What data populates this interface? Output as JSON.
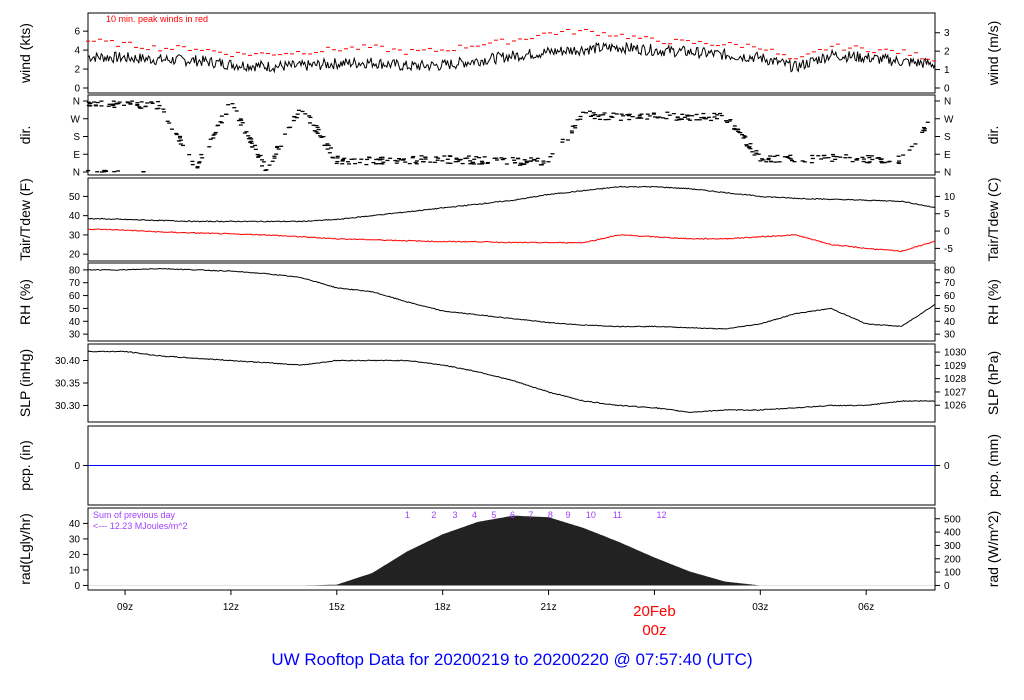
{
  "chart_data": {
    "type": "line",
    "title": "UW Rooftop Data for 20200219  to  20200220 @ 07:57:40  (UTC)",
    "x_unit": "hours since 20200219 00z",
    "xlim": [
      7.95,
      31.95
    ],
    "x_ticks": [
      {
        "h": 9,
        "label": "09z"
      },
      {
        "h": 12,
        "label": "12z"
      },
      {
        "h": 15,
        "label": "15z"
      },
      {
        "h": 18,
        "label": "18z"
      },
      {
        "h": 21,
        "label": "21z"
      },
      {
        "h": 24,
        "label": "00z"
      },
      {
        "h": 27,
        "label": "03z"
      },
      {
        "h": 30,
        "label": "06z"
      }
    ],
    "date_label": "20Feb",
    "hours": [
      8,
      9,
      10,
      11,
      12,
      13,
      14,
      15,
      16,
      17,
      18,
      19,
      20,
      21,
      22,
      23,
      24,
      25,
      26,
      27,
      28,
      29,
      30,
      31,
      32
    ],
    "panels": [
      {
        "id": "wind",
        "ylabel": "wind (kts)",
        "ylabel_right": "wind (m/s)",
        "ylim": [
          0,
          7.6
        ],
        "ticks": [
          0,
          2,
          4,
          6
        ],
        "ticks_right": [
          {
            "v": 0,
            "label": "0"
          },
          {
            "v": 1.944,
            "label": "1"
          },
          {
            "v": 3.888,
            "label": "2"
          },
          {
            "v": 5.832,
            "label": "3"
          }
        ],
        "note": "10 min. peak winds in red",
        "series": [
          {
            "name": "wind",
            "color": "#000000",
            "values": [
              3.3,
              3.2,
              3.0,
              2.9,
              2.5,
              2.3,
              2.3,
              2.6,
              2.7,
              2.3,
              2.4,
              2.9,
              3.4,
              3.8,
              4.1,
              4.3,
              4.0,
              3.8,
              3.5,
              3.2,
              2.2,
              3.5,
              3.2,
              2.8,
              2.5
            ]
          },
          {
            "name": "peak",
            "color": "#ff0000",
            "style": "dash",
            "values": [
              5.0,
              4.6,
              4.2,
              4.2,
              3.6,
              3.6,
              3.8,
              4.1,
              4.3,
              3.8,
              4.0,
              4.6,
              5.0,
              5.8,
              6.0,
              5.6,
              5.0,
              4.8,
              4.6,
              4.4,
              2.8,
              4.4,
              4.1,
              3.8,
              3.0
            ]
          }
        ]
      },
      {
        "id": "dir",
        "ylabel": "dir.",
        "ylabel_right": "dir.",
        "ylim": [
          0,
          360
        ],
        "ticks_labeled": [
          {
            "v": 0,
            "label": "N"
          },
          {
            "v": 90,
            "label": "E"
          },
          {
            "v": 180,
            "label": "S"
          },
          {
            "v": 270,
            "label": "W"
          },
          {
            "v": 360,
            "label": "N"
          }
        ],
        "series": [
          {
            "name": "direction",
            "color": "#000000",
            "style": "points",
            "values": [
              350,
              345,
              340,
              20,
              350,
              10,
              330,
              60,
              55,
              60,
              65,
              60,
              55,
              50,
              290,
              280,
              285,
              280,
              280,
              70,
              65,
              70,
              65,
              60,
              300
            ]
          }
        ]
      },
      {
        "id": "temp",
        "ylabel": "Tair/Tdew (F)",
        "ylabel_right": "Tair/Tdew (C)",
        "ylim": [
          18,
          58
        ],
        "ticks": [
          20,
          30,
          40,
          50
        ],
        "ticks_right": [
          {
            "v": 23,
            "label": "-5"
          },
          {
            "v": 32,
            "label": "0"
          },
          {
            "v": 41,
            "label": "5"
          },
          {
            "v": 50,
            "label": "10"
          }
        ],
        "series": [
          {
            "name": "Tair",
            "color": "#000000",
            "values": [
              38.5,
              38,
              37.5,
              37,
              37,
              37,
              37,
              38,
              40,
              42,
              44,
              46,
              48,
              51,
              53,
              55,
              55,
              54,
              52,
              50,
              49,
              48.5,
              48,
              47.5,
              44
            ]
          },
          {
            "name": "Tdew",
            "color": "#ff0000",
            "values": [
              33,
              32.5,
              31.5,
              31,
              30.5,
              30,
              29,
              28,
              27.5,
              27,
              26.5,
              26.5,
              26,
              26,
              26,
              30,
              29,
              28,
              28,
              29,
              30,
              25,
              23,
              21.5,
              27
            ]
          }
        ]
      },
      {
        "id": "rh",
        "ylabel": "RH (%)",
        "ylabel_right": "RH (%)",
        "ylim": [
          27,
          83
        ],
        "ticks": [
          30,
          40,
          50,
          60,
          70,
          80
        ],
        "ticks_right": [
          {
            "v": 30,
            "label": "30"
          },
          {
            "v": 40,
            "label": "40"
          },
          {
            "v": 50,
            "label": "50"
          },
          {
            "v": 60,
            "label": "60"
          },
          {
            "v": 70,
            "label": "70"
          },
          {
            "v": 80,
            "label": "80"
          }
        ],
        "series": [
          {
            "name": "RH",
            "color": "#000000",
            "values": [
              80,
              80,
              81,
              80,
              79,
              77,
              74,
              66,
              63,
              55,
              48,
              45,
              42,
              39,
              37,
              36,
              36,
              35,
              34,
              38,
              46,
              50,
              38,
              36,
              54
            ]
          }
        ]
      },
      {
        "id": "slp",
        "ylabel": "SLP (inHg)",
        "ylabel_right": "SLP (hPa)",
        "ylim": [
          30.27,
          30.43
        ],
        "ticks": [
          30.3,
          30.35,
          30.4
        ],
        "tick_fmt": 2,
        "ticks_right": [
          {
            "v": 30.3006,
            "label": "1026"
          },
          {
            "v": 30.3301,
            "label": "1027"
          },
          {
            "v": 30.3597,
            "label": "1028"
          },
          {
            "v": 30.3892,
            "label": "1029"
          },
          {
            "v": 30.4187,
            "label": "1030"
          }
        ],
        "series": [
          {
            "name": "SLP",
            "color": "#000000",
            "values": [
              30.42,
              30.42,
              30.41,
              30.405,
              30.4,
              30.395,
              30.39,
              30.4,
              30.4,
              30.4,
              30.39,
              30.375,
              30.355,
              30.33,
              30.31,
              30.3,
              30.295,
              30.285,
              30.29,
              30.29,
              30.295,
              30.3,
              30.3,
              30.31,
              30.31
            ]
          }
        ]
      },
      {
        "id": "pcp",
        "ylabel": "pcp. (in)",
        "ylabel_right": "pcp. (mm)",
        "ylim": [
          -1,
          1
        ],
        "ticks": [
          0
        ],
        "ticks_right": [
          {
            "v": 0,
            "label": "0"
          }
        ],
        "series": [
          {
            "name": "pcp",
            "color": "#0000ff",
            "values": [
              0,
              0,
              0,
              0,
              0,
              0,
              0,
              0,
              0,
              0,
              0,
              0,
              0,
              0,
              0,
              0,
              0,
              0,
              0,
              0,
              0,
              0,
              0,
              0,
              0
            ]
          }
        ]
      },
      {
        "id": "rad",
        "ylabel": "rad(Lgly/hr)",
        "ylabel_right": "rad (W/m^2)",
        "ylim": [
          -1,
          48
        ],
        "ticks": [
          0,
          10,
          20,
          30,
          40
        ],
        "ticks_right": [
          {
            "v": 0,
            "label": "0"
          },
          {
            "v": 8.6,
            "label": "100"
          },
          {
            "v": 17.2,
            "label": "200"
          },
          {
            "v": 25.8,
            "label": "300"
          },
          {
            "v": 34.4,
            "label": "400"
          },
          {
            "v": 43.0,
            "label": "500"
          }
        ],
        "note1": "Sum of previous day",
        "note2": "<--- 12.23 MJoules/m^2",
        "hour_markers": [
          {
            "h": 17.0,
            "label": "1"
          },
          {
            "h": 17.75,
            "label": "2"
          },
          {
            "h": 18.35,
            "label": "3"
          },
          {
            "h": 18.9,
            "label": "4"
          },
          {
            "h": 19.45,
            "label": "5"
          },
          {
            "h": 19.98,
            "label": "6"
          },
          {
            "h": 20.5,
            "label": "7"
          },
          {
            "h": 21.05,
            "label": "8"
          },
          {
            "h": 21.55,
            "label": "9"
          },
          {
            "h": 22.2,
            "label": "10"
          },
          {
            "h": 22.95,
            "label": "11"
          },
          {
            "h": 24.2,
            "label": "12"
          }
        ],
        "series": [
          {
            "name": "radiation",
            "color": "#222222",
            "style": "area",
            "values": [
              0,
              0,
              0,
              0,
              0,
              0,
              0,
              0.5,
              8,
              22,
              33,
              41,
              45,
              44,
              37,
              28,
              18,
              9,
              2.5,
              0,
              0,
              0,
              0,
              0,
              0
            ]
          }
        ]
      }
    ]
  }
}
